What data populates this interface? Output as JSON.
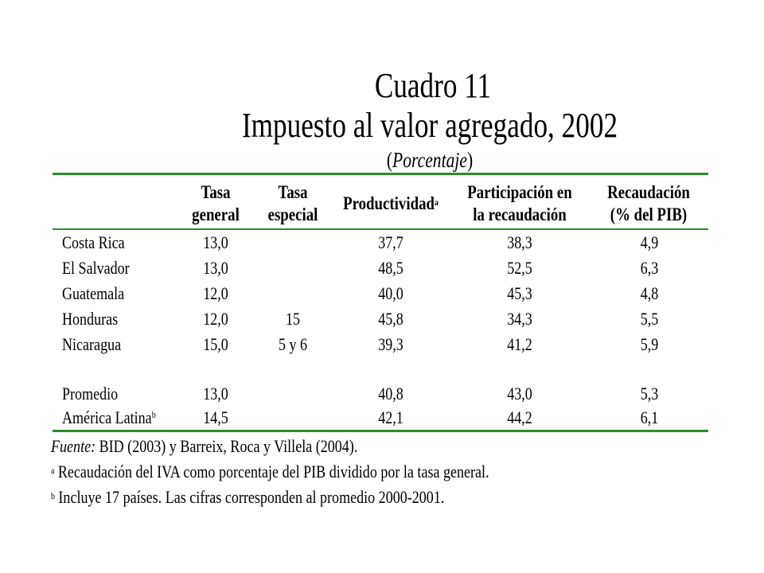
{
  "title": {
    "line1": "Cuadro 11",
    "line2": "Impuesto al valor agregado, 2002",
    "line3_open": "(",
    "line3_text": "Porcentaje",
    "line3_close": ")"
  },
  "table": {
    "headers": [
      {
        "line1": "Tasa",
        "line2": "general",
        "sup": ""
      },
      {
        "line1": "Tasa",
        "line2": "especial",
        "sup": ""
      },
      {
        "line1": "Productividad",
        "line2": "",
        "sup": "a"
      },
      {
        "line1": "Participación en",
        "line2": "la recaudación",
        "sup": ""
      },
      {
        "line1": "Recaudación",
        "line2": "(% del PIB)",
        "sup": ""
      }
    ],
    "rows": [
      {
        "country": "Costa Rica",
        "sup": "",
        "general": "13,0",
        "especial": "",
        "productividad": "37,7",
        "participacion": "38,3",
        "recaudacion": "4,9"
      },
      {
        "country": "El Salvador",
        "sup": "",
        "general": "13,0",
        "especial": "",
        "productividad": "48,5",
        "participacion": "52,5",
        "recaudacion": "6,3"
      },
      {
        "country": "Guatemala",
        "sup": "",
        "general": "12,0",
        "especial": "",
        "productividad": "40,0",
        "participacion": "45,3",
        "recaudacion": "4,8"
      },
      {
        "country": "Honduras",
        "sup": "",
        "general": "12,0",
        "especial": "15",
        "productividad": "45,8",
        "participacion": "34,3",
        "recaudacion": "5,5"
      },
      {
        "country": "Nicaragua",
        "sup": "",
        "general": "15,0",
        "especial": "5 y 6",
        "productividad": "39,3",
        "participacion": "41,2",
        "recaudacion": "5,9"
      },
      {
        "country": "Promedio",
        "sup": "",
        "general": "13,0",
        "especial": "",
        "productividad": "40,8",
        "participacion": "43,0",
        "recaudacion": "5,3"
      },
      {
        "country": "América Latina",
        "sup": "b",
        "general": "14,5",
        "especial": "",
        "productividad": "42,1",
        "participacion": "44,2",
        "recaudacion": "6,1"
      }
    ]
  },
  "notes": {
    "source_label": "Fuente:",
    "source_text": " BID (2003) y  Barreix, Roca y Villela (2004).",
    "note_a_mark": "a",
    "note_a_text": " Recaudación del IVA como porcentaje del PIB dividido por la tasa general.",
    "note_b_mark": "b",
    "note_b_text": " Incluye 17 países. Las cifras corresponden al promedio 2000-2001."
  }
}
